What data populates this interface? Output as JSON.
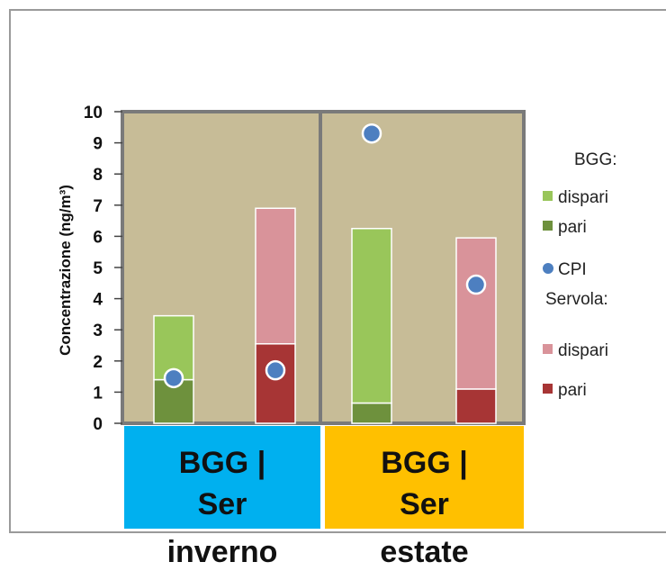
{
  "chart_data": {
    "type": "bar",
    "stacked": true,
    "ylabel": "Concentrazione (ng/m³)",
    "ylim": [
      0,
      10
    ],
    "yticks": [
      "0",
      "1",
      "2",
      "3",
      "4",
      "5",
      "6",
      "7",
      "8",
      "9",
      "10"
    ],
    "grid": false,
    "legend_position": "right",
    "groups": [
      {
        "name": "inverno",
        "x_label": "BGG | Ser"
      },
      {
        "name": "estate",
        "x_label": "BGG | Ser"
      }
    ],
    "bars": [
      {
        "group": "inverno",
        "site": "BGG",
        "pari": 1.4,
        "dispari": 2.05,
        "total": 3.45,
        "cpi": 1.45
      },
      {
        "group": "inverno",
        "site": "Servola",
        "pari": 2.55,
        "dispari": 4.35,
        "total": 6.9,
        "cpi": 1.7
      },
      {
        "group": "estate",
        "site": "BGG",
        "pari": 0.65,
        "dispari": 5.6,
        "total": 6.25,
        "cpi": 9.3
      },
      {
        "group": "estate",
        "site": "Servola",
        "pari": 1.1,
        "dispari": 4.85,
        "total": 5.95,
        "cpi": 4.45
      }
    ],
    "legend": [
      {
        "label": "BGG:",
        "type": "heading"
      },
      {
        "label": "dispari",
        "type": "square",
        "color": "#99c65a"
      },
      {
        "label": "pari",
        "type": "square",
        "color": "#6e913d"
      },
      {
        "label": "CPI",
        "type": "circle",
        "color": "#4d7fc0"
      },
      {
        "label": "Servola:",
        "type": "heading"
      },
      {
        "label": "dispari",
        "type": "square",
        "color": "#d9939a"
      },
      {
        "label": "pari",
        "type": "square",
        "color": "#a73535"
      }
    ],
    "colors": {
      "bgg_dispari": "#99c65a",
      "bgg_pari": "#6e913d",
      "ser_dispari": "#d9939a",
      "ser_pari": "#a73535",
      "cpi": "#4d7fc0",
      "plot_bg": "#c7bc97",
      "panel_border": "#7a7a7a",
      "inverno_box": "#00b0ef",
      "estate_box": "#ffc000"
    }
  }
}
